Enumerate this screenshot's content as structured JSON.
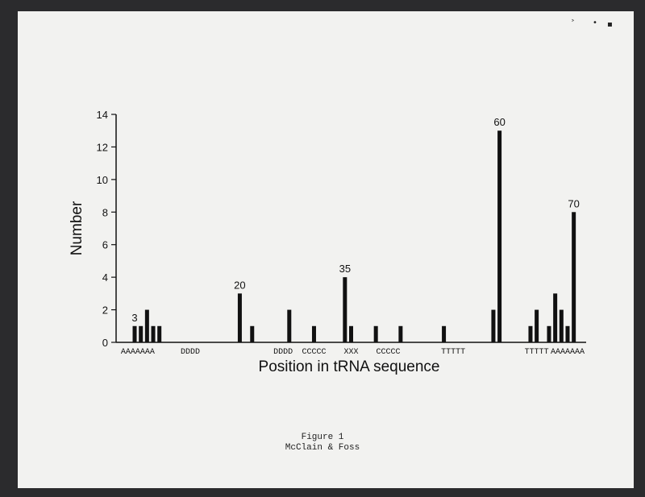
{
  "caption": {
    "line1": "Figure 1",
    "line2": "McClain & Foss"
  },
  "chart_data": {
    "type": "bar",
    "xlabel": "Position in tRNA sequence",
    "ylabel": "Number",
    "ylim": [
      0,
      14
    ],
    "yticks": [
      0,
      2,
      4,
      6,
      8,
      10,
      12,
      14
    ],
    "xlim": [
      0,
      76
    ],
    "bars": [
      {
        "x": 3,
        "value": 1
      },
      {
        "x": 4,
        "value": 1
      },
      {
        "x": 5,
        "value": 2
      },
      {
        "x": 6,
        "value": 1
      },
      {
        "x": 7,
        "value": 1
      },
      {
        "x": 20,
        "value": 3
      },
      {
        "x": 22,
        "value": 1
      },
      {
        "x": 28,
        "value": 2
      },
      {
        "x": 32,
        "value": 1
      },
      {
        "x": 37,
        "value": 4
      },
      {
        "x": 38,
        "value": 1
      },
      {
        "x": 42,
        "value": 1
      },
      {
        "x": 46,
        "value": 1
      },
      {
        "x": 53,
        "value": 1
      },
      {
        "x": 61,
        "value": 2
      },
      {
        "x": 62,
        "value": 13
      },
      {
        "x": 67,
        "value": 1
      },
      {
        "x": 68,
        "value": 2
      },
      {
        "x": 70,
        "value": 1
      },
      {
        "x": 71,
        "value": 3
      },
      {
        "x": 72,
        "value": 2
      },
      {
        "x": 73,
        "value": 1
      },
      {
        "x": 74,
        "value": 8
      }
    ],
    "bar_labels": [
      {
        "text": "3",
        "x": 3,
        "y": 1
      },
      {
        "text": "20",
        "x": 20,
        "y": 3
      },
      {
        "text": "35",
        "x": 37,
        "y": 4
      },
      {
        "text": "60",
        "x": 62,
        "y": 13
      },
      {
        "text": "70",
        "x": 74,
        "y": 8
      }
    ],
    "segments": [
      {
        "text": "AAAAAAA",
        "x": 3.5
      },
      {
        "text": "DDDD",
        "x": 12
      },
      {
        "text": "DDDD",
        "x": 27
      },
      {
        "text": "CCCCC",
        "x": 32
      },
      {
        "text": "XXX",
        "x": 38
      },
      {
        "text": "CCCCC",
        "x": 44
      },
      {
        "text": "TTTTT",
        "x": 54.5
      },
      {
        "text": "TTTTT",
        "x": 68
      },
      {
        "text": "AAAAAAA",
        "x": 73
      }
    ]
  }
}
